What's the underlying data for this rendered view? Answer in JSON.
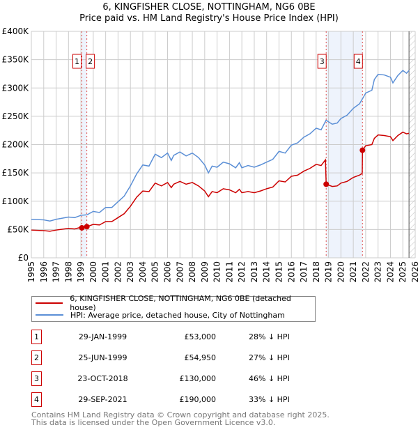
{
  "chart_data": {
    "type": "line",
    "title": "6, KINGFISHER CLOSE, NOTTINGHAM, NG6 0BE",
    "subtitle": "Price paid vs. HM Land Registry's House Price Index (HPI)",
    "xlim": [
      1995,
      2026
    ],
    "ylim": [
      0,
      400000
    ],
    "x_ticks": [
      "1995",
      "1996",
      "1997",
      "1998",
      "1999",
      "2000",
      "2001",
      "2002",
      "2003",
      "2004",
      "2005",
      "2006",
      "2007",
      "2008",
      "2009",
      "2010",
      "2011",
      "2012",
      "2013",
      "2014",
      "2015",
      "2016",
      "2017",
      "2018",
      "2019",
      "2020",
      "2021",
      "2022",
      "2023",
      "2024",
      "2025",
      "2026"
    ],
    "y_ticks": [
      {
        "v": 0,
        "label": "£0"
      },
      {
        "v": 50000,
        "label": "£50K"
      },
      {
        "v": 100000,
        "label": "£100K"
      },
      {
        "v": 150000,
        "label": "£150K"
      },
      {
        "v": 200000,
        "label": "£200K"
      },
      {
        "v": 250000,
        "label": "£250K"
      },
      {
        "v": 300000,
        "label": "£300K"
      },
      {
        "v": 350000,
        "label": "£350K"
      },
      {
        "v": 400000,
        "label": "£400K"
      }
    ],
    "grid": true,
    "forecast_hatch_from": 2025.5,
    "series": [
      {
        "name": "6, KINGFISHER CLOSE, NOTTINGHAM, NG6 0BE (detached house)",
        "color": "#cc0000",
        "x": [
          1995,
          1996,
          1996.5,
          1997,
          1998,
          1998.5,
          1999,
          1999.5,
          2000,
          2000.5,
          2001,
          2001.5,
          2002,
          2002.5,
          2003,
          2003.5,
          2004,
          2004.5,
          2005,
          2005.5,
          2006,
          2006.3,
          2006.5,
          2007,
          2007.5,
          2008,
          2008.5,
          2009,
          2009.3,
          2009.6,
          2010,
          2010.5,
          2011,
          2011.5,
          2011.8,
          2012,
          2012.5,
          2013,
          2013.5,
          2014,
          2014.5,
          2015,
          2015.5,
          2016,
          2016.5,
          2017,
          2017.5,
          2018,
          2018.4,
          2018.75,
          2018.81,
          2019.3,
          2019.7,
          2020,
          2020.5,
          2021,
          2021.5,
          2021.72,
          2021.74,
          2022,
          2022.5,
          2022.7,
          2023,
          2023.5,
          2024,
          2024.2,
          2024.6,
          2025,
          2025.3,
          2025.5
        ],
        "y": [
          49000,
          48000,
          47000,
          49000,
          52000,
          51000,
          54000,
          55000,
          59000,
          58000,
          64000,
          64000,
          71000,
          78000,
          91000,
          107000,
          118000,
          117000,
          132000,
          127000,
          133000,
          124000,
          130000,
          135000,
          130000,
          133000,
          127000,
          118000,
          108000,
          117000,
          115000,
          122000,
          120000,
          115000,
          121000,
          115000,
          117000,
          115000,
          118000,
          122000,
          125000,
          136000,
          134000,
          144000,
          146000,
          153000,
          158000,
          165000,
          163000,
          173000,
          130000,
          126000,
          127000,
          132000,
          135000,
          142000,
          146000,
          149000,
          190000,
          198000,
          200000,
          211000,
          217000,
          216000,
          214000,
          207000,
          216000,
          222000,
          219000,
          220000
        ]
      },
      {
        "name": "HPI: Average price, detached house, City of Nottingham",
        "color": "#5b8fd6",
        "x": [
          1995,
          1996,
          1996.5,
          1997,
          1998,
          1998.5,
          1999,
          1999.5,
          2000,
          2000.5,
          2001,
          2001.5,
          2002,
          2002.5,
          2003,
          2003.5,
          2004,
          2004.5,
          2005,
          2005.5,
          2006,
          2006.3,
          2006.5,
          2007,
          2007.5,
          2008,
          2008.5,
          2009,
          2009.3,
          2009.6,
          2010,
          2010.5,
          2011,
          2011.5,
          2011.8,
          2012,
          2012.5,
          2013,
          2013.5,
          2014,
          2014.5,
          2015,
          2015.5,
          2016,
          2016.5,
          2017,
          2017.5,
          2018,
          2018.4,
          2018.8,
          2019.3,
          2019.7,
          2020,
          2020.5,
          2021,
          2021.5,
          2021.8,
          2022,
          2022.5,
          2022.7,
          2023,
          2023.5,
          2024,
          2024.2,
          2024.6,
          2025,
          2025.3,
          2025.5
        ],
        "y": [
          68000,
          67000,
          65000,
          68000,
          72000,
          71000,
          75000,
          76000,
          82000,
          80000,
          89000,
          89000,
          99000,
          109000,
          127000,
          148000,
          164000,
          162000,
          183000,
          177000,
          185000,
          172000,
          181000,
          187000,
          180000,
          185000,
          177000,
          164000,
          150000,
          162000,
          160000,
          169000,
          166000,
          159000,
          168000,
          159000,
          163000,
          160000,
          164000,
          169000,
          174000,
          188000,
          185000,
          199000,
          203000,
          213000,
          219000,
          229000,
          226000,
          243000,
          236000,
          238000,
          246000,
          252000,
          264000,
          272000,
          283000,
          291000,
          296000,
          315000,
          324000,
          323000,
          319000,
          309000,
          322000,
          331000,
          326000,
          331000
        ]
      }
    ],
    "sales": [
      {
        "n": "1",
        "x": 1999.08,
        "date": "29-JAN-1999",
        "price_value": 53000,
        "price": "£53,000",
        "hpi": "28% ↓ HPI"
      },
      {
        "n": "2",
        "x": 1999.48,
        "date": "25-JUN-1999",
        "price_value": 54950,
        "price": "£54,950",
        "hpi": "27% ↓ HPI"
      },
      {
        "n": "3",
        "x": 2018.81,
        "date": "23-OCT-2018",
        "price_value": 130000,
        "price": "£130,000",
        "hpi": "46% ↓ HPI"
      },
      {
        "n": "4",
        "x": 2021.74,
        "date": "29-SEP-2021",
        "price_value": 190000,
        "price": "£190,000",
        "hpi": "33% ↓ HPI"
      }
    ],
    "legend_placement": "below"
  },
  "footer": {
    "line1": "Contains HM Land Registry data © Crown copyright and database right 2025.",
    "line2": "This data is licensed under the Open Government Licence v3.0."
  }
}
